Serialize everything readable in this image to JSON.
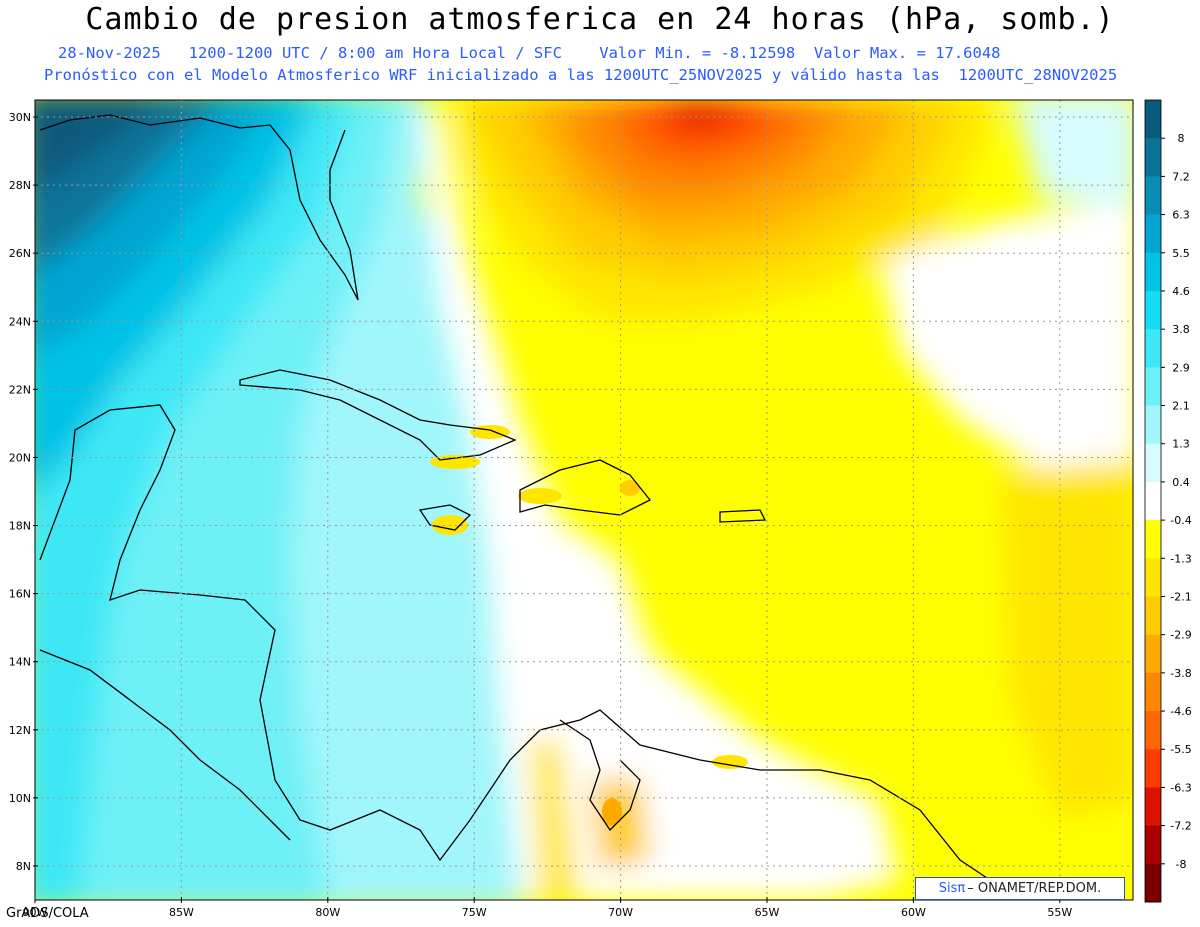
{
  "header": {
    "title": "Cambio de presion atmosferica en 24 horas (hPa, somb.)",
    "line1": "28-Nov-2025   1200-1200 UTC / 8:00 am Hora Local / SFC    Valor Min. = -8.12598  Valor Max. = 17.6048",
    "line2": "Pronóstico con el Modelo Atmosferico WRF inicializado a las 1200UTC_25NOV2025 y válido hasta las  1200UTC_28NOV2025"
  },
  "map": {
    "lat_labels": [
      "30N",
      "28N",
      "26N",
      "24N",
      "22N",
      "20N",
      "18N",
      "16N",
      "14N",
      "12N",
      "10N",
      "8N"
    ],
    "lon_labels": [
      "90W",
      "85W",
      "80W",
      "75W",
      "70W",
      "65W",
      "60W",
      "55W"
    ],
    "lat_values": [
      30,
      28,
      26,
      24,
      22,
      20,
      18,
      16,
      14,
      12,
      10,
      8
    ],
    "lon_values": [
      -90,
      -85,
      -80,
      -75,
      -70,
      -65,
      -60,
      -55
    ],
    "extent": {
      "lon_min": -90,
      "lon_max": -52.5,
      "lat_min": 7,
      "lat_max": 30.5
    }
  },
  "colorbar": {
    "labels": [
      "8",
      "7.2",
      "6.3",
      "5.5",
      "4.6",
      "3.8",
      "2.9",
      "2.1",
      "1.3",
      "0.4",
      "-0.4",
      "-1.3",
      "-2.1",
      "-2.9",
      "-3.8",
      "-4.6",
      "-5.5",
      "-6.3",
      "-7.2",
      "-8"
    ],
    "colors": [
      "#0a5a7d",
      "#0a7398",
      "#0a8cb6",
      "#00a5d1",
      "#00c2e6",
      "#14dcf5",
      "#3ce8f5",
      "#6ef0f7",
      "#a0f6fa",
      "#d6fcfd",
      "#ffffff",
      "#ffff00",
      "#ffe600",
      "#ffcc00",
      "#ffaa00",
      "#ff8800",
      "#ff6600",
      "#ff3c00",
      "#dd1100",
      "#aa0000",
      "#7a0000"
    ]
  },
  "footer": {
    "credit": "GrADS/COLA",
    "logo_sis": "Sisπ",
    "logo_rest": "– ONAMET/REP.DOM."
  }
}
